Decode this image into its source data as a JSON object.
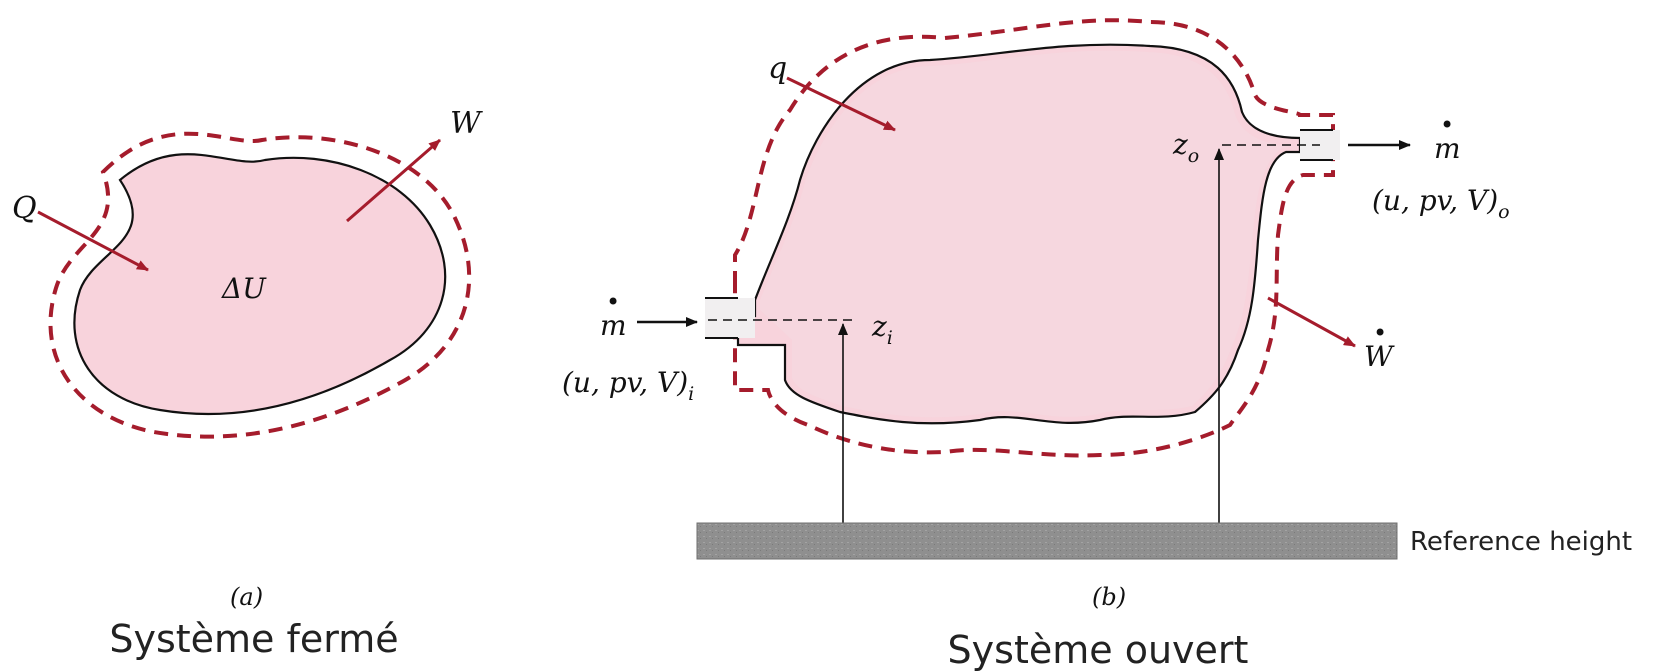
{
  "figure": {
    "closed_system": {
      "caption_letter": "a",
      "caption": "Système fermé",
      "label_heat": "Q",
      "label_work": "W",
      "label_energy": "ΔU"
    },
    "open_system": {
      "caption_letter": "b",
      "caption": "Système ouvert",
      "label_heat": "q",
      "label_work": "W",
      "label_mass_flow_in": "m",
      "label_mass_flow_out": "m",
      "label_inlet_props": "(u, pv, V)",
      "label_inlet_sub": "i",
      "label_outlet_props": "(u, pv, V)",
      "label_outlet_sub": "o",
      "label_z_inlet": "z",
      "label_z_inlet_sub": "i",
      "label_z_outlet": "z",
      "label_z_outlet_sub": "o",
      "reference_label": "Reference height"
    },
    "colors": {
      "system_fill": "#f8d3dc",
      "boundary_red": "#a51c2c",
      "arrow_red": "#a51c2c",
      "ground_gray": "#8f8f8f",
      "outline": "#111111"
    }
  }
}
